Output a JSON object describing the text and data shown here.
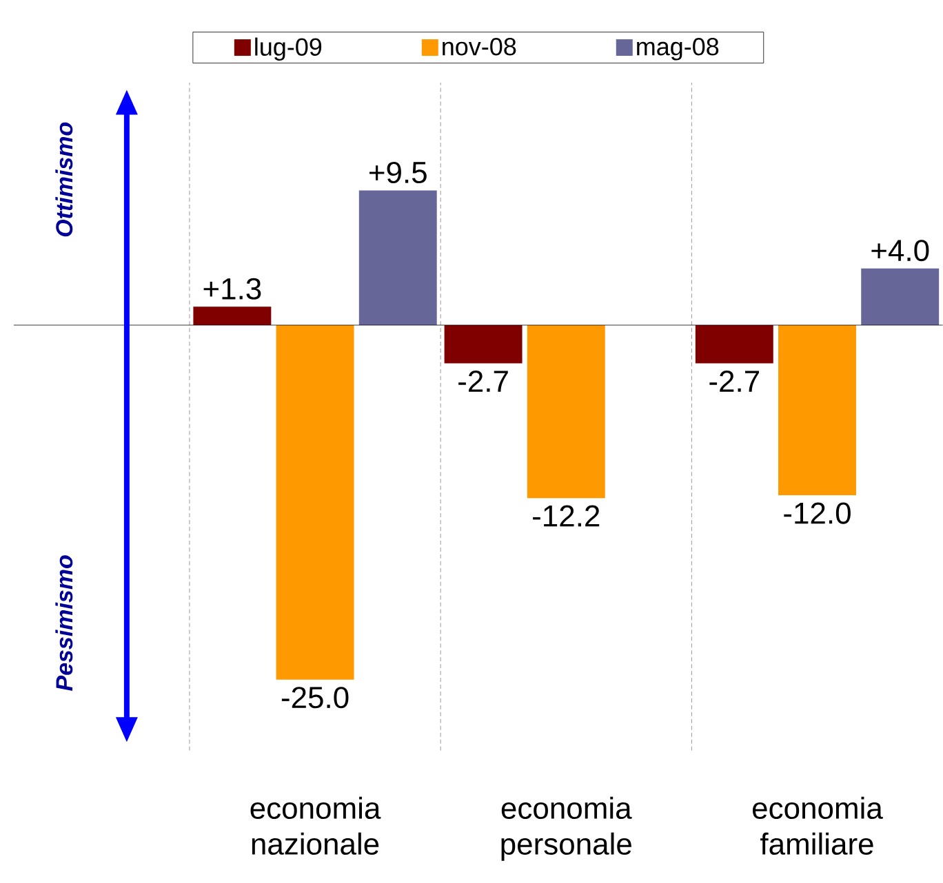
{
  "chart_data": {
    "type": "bar",
    "categories": [
      "economia nazionale",
      "economia personale",
      "economia familiare"
    ],
    "series": [
      {
        "name": "lug-09",
        "color": "#800000",
        "values": [
          1.3,
          -2.7,
          -2.7
        ],
        "value_labels": [
          "+1.3",
          "-2.7",
          "-2.7"
        ]
      },
      {
        "name": "nov-08",
        "color": "#ff9900",
        "values": [
          -25.0,
          -12.2,
          -12.0
        ],
        "value_labels": [
          "-25.0",
          "-12.2",
          "-12.0"
        ]
      },
      {
        "name": "mag-08",
        "color": "#666699",
        "values": [
          9.5,
          null,
          4.0
        ],
        "value_labels": [
          "+9.5",
          null,
          "+4.0"
        ]
      }
    ],
    "annotations": [
      "Ottimismo",
      "Pessimismo"
    ],
    "legend": "top",
    "grid": "x"
  }
}
